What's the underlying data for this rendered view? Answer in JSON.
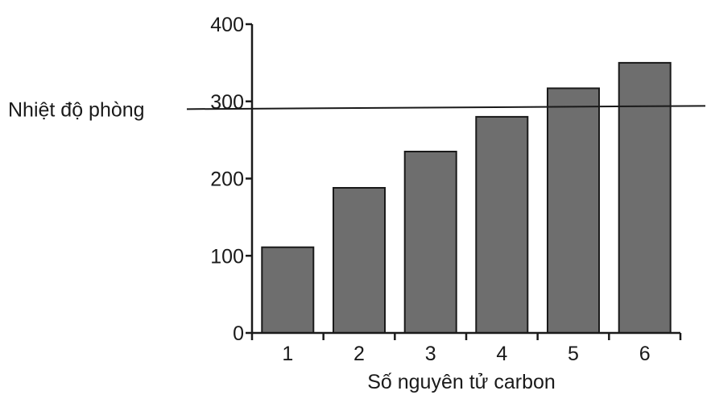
{
  "chart_data": {
    "type": "bar",
    "categories": [
      "1",
      "2",
      "3",
      "4",
      "5",
      "6"
    ],
    "values": [
      111,
      188,
      235,
      280,
      317,
      350
    ],
    "xlabel": "Số nguyên tử carbon",
    "ylabel": "",
    "ylim": [
      0,
      400
    ],
    "yticks": [
      "0",
      "100",
      "200",
      "300",
      "400"
    ],
    "grid": false,
    "reference_line": {
      "label": "Nhiệt độ phòng",
      "value": 290
    },
    "colors": {
      "bar": "#6e6e6e",
      "stroke": "#1a1a1a"
    }
  }
}
